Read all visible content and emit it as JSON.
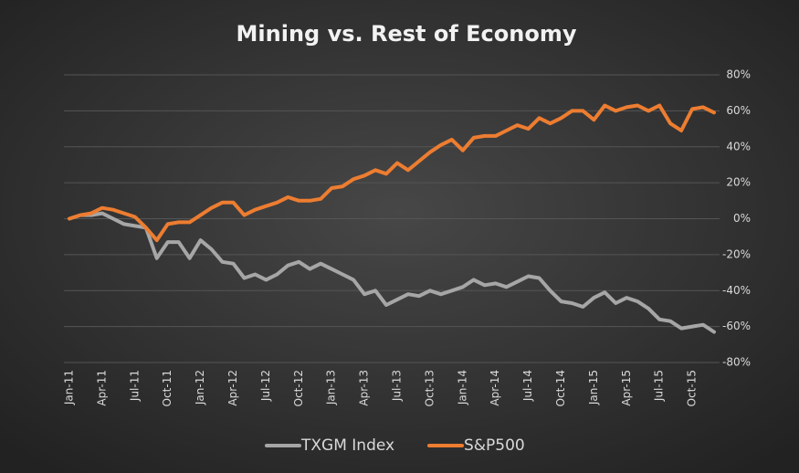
{
  "chart_data": {
    "type": "line",
    "title": "Mining vs. Rest of Economy",
    "categories": [
      "Jan-11",
      null,
      null,
      "Apr-11",
      null,
      null,
      "Jul-11",
      null,
      null,
      "Oct-11",
      null,
      null,
      "Jan-12",
      null,
      null,
      "Apr-12",
      null,
      null,
      "Jul-12",
      null,
      null,
      "Oct-12",
      null,
      null,
      "Jan-13",
      null,
      null,
      "Apr-13",
      null,
      null,
      "Jul-13",
      null,
      null,
      "Oct-13",
      null,
      null,
      "Jan-14",
      null,
      null,
      "Apr-14",
      null,
      null,
      "Jul-14",
      null,
      null,
      "Oct-14",
      null,
      null,
      "Jan-15",
      null,
      null,
      "Apr-15",
      null,
      null,
      "Jul-15",
      null,
      null,
      "Oct-15",
      null,
      null
    ],
    "series": [
      {
        "name": "TXGM Index",
        "color": "#a6a6a6",
        "values": [
          0,
          2,
          2,
          3,
          0,
          -3,
          -4,
          -5,
          -22,
          -13,
          -13,
          -22,
          -12,
          -17,
          -24,
          -25,
          -33,
          -31,
          -34,
          -31,
          -26,
          -24,
          -28,
          -25,
          -28,
          -31,
          -34,
          -42,
          -40,
          -48,
          -45,
          -42,
          -43,
          -40,
          -42,
          -40,
          -38,
          -34,
          -37,
          -36,
          -38,
          -35,
          -32,
          -33,
          -40,
          -46,
          -47,
          -49,
          -44,
          -41,
          -47,
          -44,
          -46,
          -50,
          -56,
          -57,
          -61,
          -60,
          -59,
          -63
        ]
      },
      {
        "name": "S&P500",
        "color": "#ed7d31",
        "values": [
          0,
          2,
          3,
          6,
          5,
          3,
          1,
          -5,
          -12,
          -3,
          -2,
          -2,
          2,
          6,
          9,
          9,
          2,
          5,
          7,
          9,
          12,
          10,
          10,
          11,
          17,
          18,
          22,
          24,
          27,
          25,
          31,
          27,
          32,
          37,
          41,
          44,
          38,
          45,
          46,
          46,
          49,
          52,
          50,
          56,
          53,
          56,
          60,
          60,
          55,
          63,
          60,
          62,
          63,
          60,
          63,
          53,
          49,
          61,
          62,
          59
        ]
      }
    ],
    "ylim": [
      -80,
      80
    ],
    "yticks": [
      {
        "value": -80,
        "label": "-80%"
      },
      {
        "value": -60,
        "label": "-60%"
      },
      {
        "value": -40,
        "label": "-40%"
      },
      {
        "value": -20,
        "label": "-20%"
      },
      {
        "value": 0,
        "label": "0%"
      },
      {
        "value": 20,
        "label": "20%"
      },
      {
        "value": 40,
        "label": "40%"
      },
      {
        "value": 60,
        "label": "60%"
      },
      {
        "value": 80,
        "label": "80%"
      }
    ],
    "grid": true,
    "legend": "bottom"
  }
}
